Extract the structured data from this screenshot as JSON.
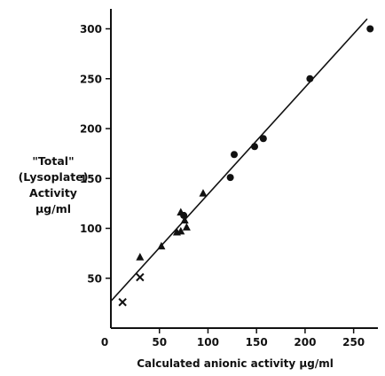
{
  "chart_data": {
    "type": "scatter",
    "title": "",
    "xlabel": "Calculated anionic activity µg/ml",
    "ylabel_lines": [
      "\"Total\"",
      "(Lysoplate)",
      "Activity",
      "µg/ml"
    ],
    "xlim": [
      0,
      275
    ],
    "ylim": [
      0,
      320
    ],
    "x_ticks": [
      0,
      50,
      100,
      150,
      200,
      250
    ],
    "y_ticks": [
      50,
      100,
      150,
      200,
      250,
      300
    ],
    "grid": false,
    "ink_color": "#111111",
    "series": [
      {
        "marker": "circle",
        "points": [
          {
            "x": 75,
            "y": 113
          },
          {
            "x": 123,
            "y": 151
          },
          {
            "x": 127,
            "y": 174
          },
          {
            "x": 148,
            "y": 182
          },
          {
            "x": 157,
            "y": 190
          },
          {
            "x": 205,
            "y": 250
          },
          {
            "x": 267,
            "y": 300
          }
        ]
      },
      {
        "marker": "triangle",
        "points": [
          {
            "x": 30,
            "y": 71
          },
          {
            "x": 52,
            "y": 82
          },
          {
            "x": 68,
            "y": 96
          },
          {
            "x": 72,
            "y": 97
          },
          {
            "x": 72,
            "y": 116
          },
          {
            "x": 76,
            "y": 108
          },
          {
            "x": 78,
            "y": 101
          },
          {
            "x": 95,
            "y": 135
          }
        ]
      },
      {
        "marker": "cross",
        "points": [
          {
            "x": 12,
            "y": 26
          },
          {
            "x": 30,
            "y": 51
          }
        ]
      }
    ],
    "fit_line": {
      "x": [
        0,
        264
      ],
      "y": [
        27,
        310
      ]
    }
  }
}
